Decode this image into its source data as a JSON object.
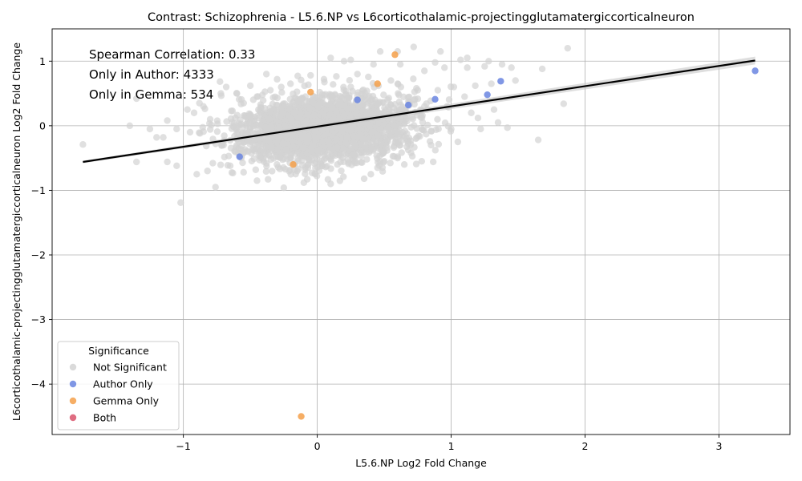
{
  "chart_data": {
    "type": "scatter",
    "title": "Contrast: Schizophrenia - L5.6.NP vs L6corticothalamic-projectingglutamatergiccorticalneuron",
    "xlabel": "L5.6.NP Log2 Fold Change",
    "ylabel": "L6corticothalamic-projectingglutamatergiccorticalneuron Log2 Fold Change",
    "xlim": [
      -1.98,
      3.53
    ],
    "ylim": [
      -4.78,
      1.5
    ],
    "xticks": [
      -1,
      0,
      1,
      2,
      3
    ],
    "yticks": [
      -4,
      -3,
      -2,
      -1,
      0,
      1
    ],
    "grid": true,
    "annotations": [
      "Spearman Correlation: 0.33",
      "Only in Author: 4333",
      "Only in Gemma: 534"
    ],
    "legend": {
      "title": "Significance",
      "placement": "lower-left",
      "entries": [
        {
          "label": "Not Significant",
          "color": "#d3d3d3"
        },
        {
          "label": "Author Only",
          "color": "#6a85e0"
        },
        {
          "label": "Gemma Only",
          "color": "#f5a04a"
        },
        {
          "label": "Both",
          "color": "#d9536b"
        }
      ]
    },
    "regression": {
      "x": [
        -1.75,
        3.27
      ],
      "y": [
        -0.56,
        1.01
      ],
      "color": "#000000"
    },
    "series": [
      {
        "name": "Not Significant",
        "color": "#d3d3d3",
        "points": [
          [
            -1.75,
            -0.29
          ],
          [
            -1.4,
            0.0
          ],
          [
            -1.35,
            -0.56
          ],
          [
            -1.35,
            0.42
          ],
          [
            -1.25,
            -0.05
          ],
          [
            -1.2,
            -0.18
          ],
          [
            -1.15,
            -0.18
          ],
          [
            -1.12,
            0.08
          ],
          [
            -1.12,
            -0.56
          ],
          [
            -1.05,
            -0.05
          ],
          [
            -1.05,
            -0.62
          ],
          [
            -1.02,
            -1.19
          ],
          [
            -0.97,
            0.25
          ],
          [
            -0.95,
            -0.1
          ],
          [
            -0.92,
            0.2
          ],
          [
            -0.9,
            -0.75
          ],
          [
            -0.88,
            0.35
          ],
          [
            -0.85,
            0.3
          ],
          [
            -0.82,
            -0.7
          ],
          [
            -0.78,
            -0.58
          ],
          [
            -0.76,
            -0.95
          ],
          [
            -0.72,
            0.5
          ],
          [
            -0.68,
            0.6
          ],
          [
            -0.65,
            -0.62
          ],
          [
            -0.6,
            0.5
          ],
          [
            -0.55,
            -0.72
          ],
          [
            -0.5,
            0.62
          ],
          [
            -0.45,
            -0.85
          ],
          [
            -0.38,
            0.8
          ],
          [
            -0.3,
            0.72
          ],
          [
            -0.25,
            -0.96
          ],
          [
            -0.2,
            0.65
          ],
          [
            -0.1,
            -0.88
          ],
          [
            -0.05,
            0.78
          ],
          [
            0.05,
            0.72
          ],
          [
            0.1,
            -0.9
          ],
          [
            0.1,
            1.05
          ],
          [
            0.2,
            1.0
          ],
          [
            0.25,
            1.02
          ],
          [
            0.35,
            -0.82
          ],
          [
            0.42,
            0.95
          ],
          [
            0.47,
            1.15
          ],
          [
            0.5,
            -0.55
          ],
          [
            0.6,
            1.15
          ],
          [
            0.62,
            0.95
          ],
          [
            0.7,
            -0.42
          ],
          [
            0.72,
            1.22
          ],
          [
            0.8,
            0.85
          ],
          [
            0.88,
            0.98
          ],
          [
            0.9,
            0.55
          ],
          [
            0.92,
            1.15
          ],
          [
            0.95,
            0.9
          ],
          [
            0.97,
            0.3
          ],
          [
            1.0,
            -0.05
          ],
          [
            1.02,
            0.6
          ],
          [
            1.05,
            -0.25
          ],
          [
            1.07,
            1.02
          ],
          [
            1.1,
            0.45
          ],
          [
            1.12,
            0.9
          ],
          [
            1.12,
            1.05
          ],
          [
            1.15,
            0.2
          ],
          [
            1.18,
            0.62
          ],
          [
            1.2,
            0.12
          ],
          [
            1.22,
            -0.05
          ],
          [
            1.25,
            0.92
          ],
          [
            1.28,
            1.0
          ],
          [
            1.3,
            0.65
          ],
          [
            1.32,
            0.25
          ],
          [
            1.35,
            0.05
          ],
          [
            1.38,
            0.95
          ],
          [
            1.42,
            -0.03
          ],
          [
            1.45,
            0.9
          ],
          [
            1.48,
            0.7
          ],
          [
            1.65,
            -0.22
          ],
          [
            1.68,
            0.88
          ],
          [
            1.84,
            0.34
          ],
          [
            1.87,
            1.2
          ],
          [
            0.85,
            -0.3
          ],
          [
            0.6,
            -0.5
          ],
          [
            0.4,
            -0.75
          ],
          [
            -0.15,
            -0.7
          ],
          [
            -0.55,
            0.35
          ],
          [
            0.25,
            0.6
          ],
          [
            0.55,
            0.7
          ],
          [
            0.75,
            0.55
          ],
          [
            0.65,
            -0.6
          ],
          [
            -0.35,
            0.55
          ],
          [
            -0.7,
            -0.3
          ],
          [
            -0.8,
            0.1
          ],
          [
            -0.6,
            -0.2
          ],
          [
            0.15,
            -0.6
          ],
          [
            0.3,
            0.8
          ],
          [
            0.45,
            -0.65
          ],
          [
            0.8,
            0.3
          ],
          [
            0.78,
            -0.55
          ],
          [
            -0.45,
            0.45
          ]
        ],
        "cloud": {
          "center": [
            0.05,
            -0.05
          ],
          "spread": [
            0.32,
            0.25
          ],
          "rotation_deg": 18,
          "count": 2600,
          "seed": 11
        }
      },
      {
        "name": "Author Only",
        "color": "#6a85e0",
        "points": [
          [
            -0.58,
            -0.48
          ],
          [
            0.88,
            0.41
          ],
          [
            1.27,
            0.48
          ],
          [
            1.37,
            0.69
          ],
          [
            3.27,
            0.85
          ],
          [
            0.3,
            0.4
          ],
          [
            0.68,
            0.32
          ]
        ]
      },
      {
        "name": "Gemma Only",
        "color": "#f5a04a",
        "points": [
          [
            -0.12,
            -4.5
          ],
          [
            0.58,
            1.1
          ],
          [
            -0.18,
            -0.6
          ],
          [
            -0.05,
            0.52
          ],
          [
            0.45,
            0.65
          ]
        ]
      },
      {
        "name": "Both",
        "color": "#d9536b",
        "points": []
      }
    ]
  }
}
